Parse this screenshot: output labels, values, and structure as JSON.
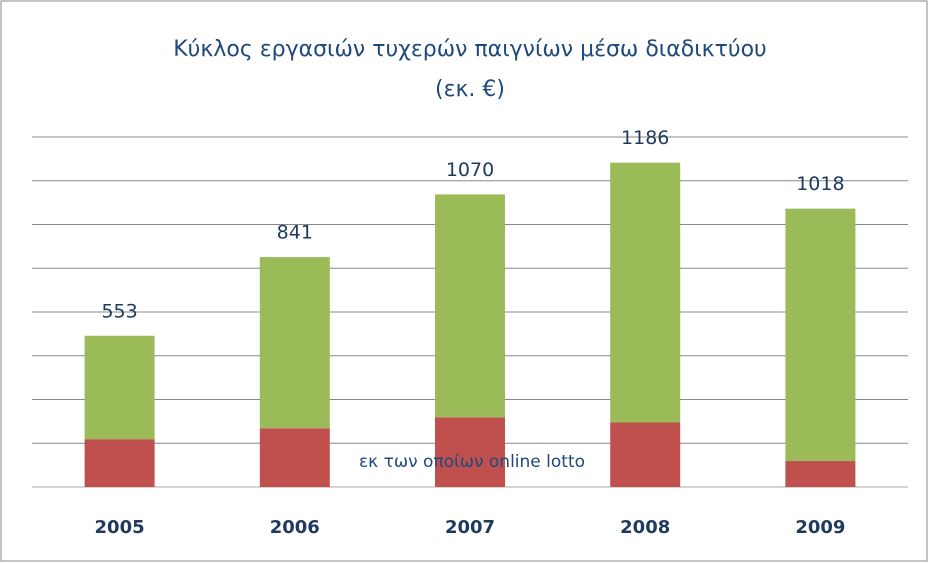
{
  "chart_data": {
    "type": "stacked_bar",
    "title": [
      "Κύκλος εργασιών τυχερών παιγνίων μέσω διαδικτύου",
      "(εκ. €)"
    ],
    "categories": [
      "2005",
      "2006",
      "2007",
      "2008",
      "2009"
    ],
    "series": [
      {
        "name": "εκ των οποίων online lotto",
        "color": "#c0504d",
        "values": [
          175,
          215,
          255,
          236,
          95
        ]
      },
      {
        "color": "#9bbb59",
        "values": [
          378,
          626,
          815,
          950,
          923
        ]
      }
    ],
    "totals": [
      553,
      841,
      1070,
      1186,
      1018
    ],
    "ylim": [
      0,
      1280
    ],
    "yticks": [
      0,
      160,
      320,
      480,
      640,
      800,
      960,
      1120,
      1280
    ],
    "grid": true
  }
}
